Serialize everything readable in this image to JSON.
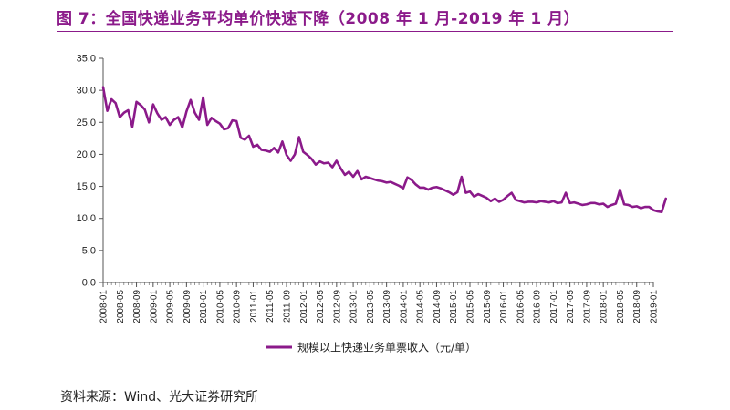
{
  "title": "图 7：全国快递业务平均单价快速下降（2008 年 1 月-2019 年 1 月）",
  "source": "资料来源：Wind、光大证券研究所",
  "colors": {
    "accent": "#8b1a8a",
    "series": "#8b1a8a",
    "axis": "#555555",
    "text": "#222222"
  },
  "chart_data": {
    "type": "line",
    "title": "",
    "xlabel": "",
    "ylabel": "",
    "ylim": [
      0,
      35
    ],
    "yticks": [
      "0.0",
      "5.0",
      "10.0",
      "15.0",
      "20.0",
      "25.0",
      "30.0",
      "35.0"
    ],
    "grid": false,
    "legend": "bottom-center",
    "x_start": "2008-01",
    "x_end": "2019-01",
    "x_tick_labels": [
      "2008-01",
      "2008-05",
      "2008-09",
      "2009-01",
      "2009-05",
      "2009-09",
      "2010-01",
      "2010-05",
      "2010-09",
      "2011-01",
      "2011-05",
      "2011-09",
      "2012-01",
      "2012-05",
      "2012-09",
      "2013-01",
      "2013-05",
      "2013-09",
      "2014-01",
      "2014-05",
      "2014-09",
      "2015-01",
      "2015-05",
      "2015-09",
      "2016-01",
      "2016-05",
      "2016-09",
      "2017-01",
      "2017-05",
      "2017-09",
      "2018-01",
      "2018-05",
      "2018-09",
      "2019-01"
    ],
    "series": [
      {
        "name": "规模以上快递业务单票收入（元/单）",
        "values": [
          30.5,
          26.8,
          28.6,
          28.0,
          25.8,
          26.5,
          26.9,
          24.3,
          28.2,
          27.7,
          27.0,
          25.0,
          27.8,
          26.4,
          25.4,
          25.8,
          24.6,
          25.4,
          25.8,
          24.2,
          26.7,
          28.5,
          26.5,
          25.4,
          28.9,
          24.6,
          25.7,
          25.2,
          24.8,
          23.9,
          24.1,
          25.3,
          25.2,
          22.6,
          22.3,
          22.9,
          21.2,
          21.5,
          20.7,
          20.6,
          20.4,
          21.0,
          20.3,
          22.0,
          19.9,
          19.0,
          20.0,
          22.7,
          20.4,
          19.9,
          19.3,
          18.4,
          18.9,
          18.6,
          18.7,
          18.0,
          19.0,
          17.8,
          16.8,
          17.3,
          16.5,
          17.4,
          16.1,
          16.5,
          16.3,
          16.1,
          15.9,
          15.8,
          15.6,
          15.7,
          15.4,
          15.1,
          14.7,
          16.4,
          16.0,
          15.3,
          14.8,
          14.8,
          14.5,
          14.8,
          14.9,
          14.7,
          14.4,
          14.1,
          13.7,
          14.1,
          16.5,
          14.0,
          14.2,
          13.4,
          13.8,
          13.5,
          13.2,
          12.7,
          13.1,
          12.6,
          12.9,
          13.5,
          14.0,
          12.9,
          12.7,
          12.5,
          12.6,
          12.6,
          12.5,
          12.7,
          12.6,
          12.5,
          12.7,
          12.4,
          12.5,
          14.0,
          12.4,
          12.5,
          12.3,
          12.1,
          12.2,
          12.4,
          12.4,
          12.2,
          12.3,
          11.8,
          12.1,
          12.3,
          14.5,
          12.2,
          12.1,
          11.8,
          11.9,
          11.6,
          11.8,
          11.8,
          11.3,
          11.1,
          11.0,
          13.1
        ]
      }
    ]
  }
}
